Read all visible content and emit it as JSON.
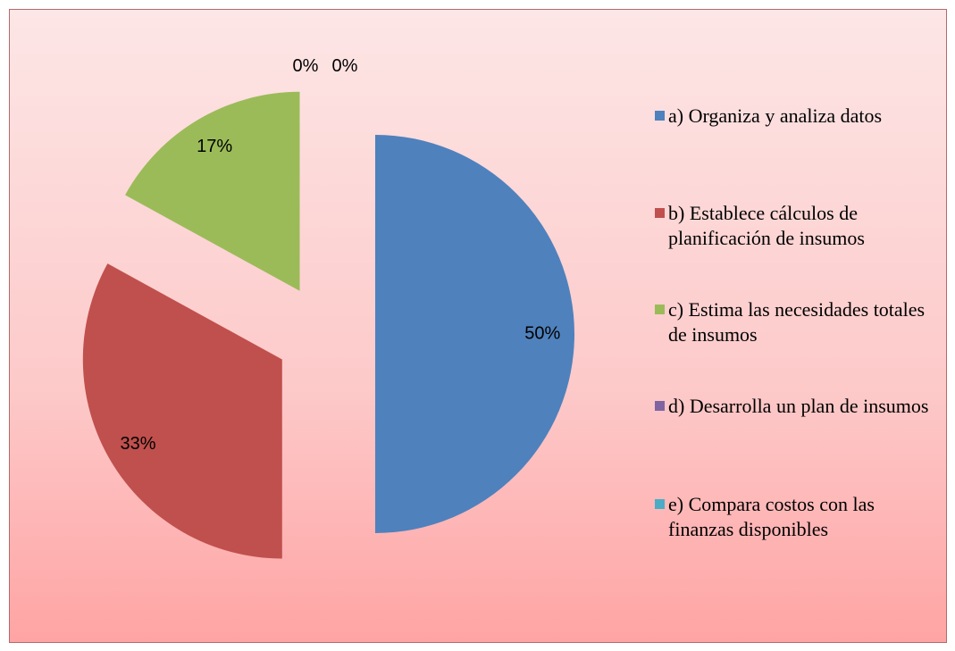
{
  "chart_data": {
    "type": "pie",
    "categories": [
      "a) Organiza y analiza datos",
      "b) Establece cálculos de planificación de insumos",
      "c) Estima las necesidades totales\nde insumos",
      "d) Desarrolla un plan de insumos",
      "e) Compara costos con las finanzas disponibles"
    ],
    "values": [
      50,
      33,
      17,
      0,
      0
    ],
    "value_labels": [
      "50%",
      "33%",
      "17%",
      "0%",
      "0%"
    ],
    "colors": [
      "#4f81bd",
      "#c0504d",
      "#9bbb59",
      "#8064a2",
      "#4bacc6"
    ],
    "exploded": true,
    "legend": "right"
  }
}
